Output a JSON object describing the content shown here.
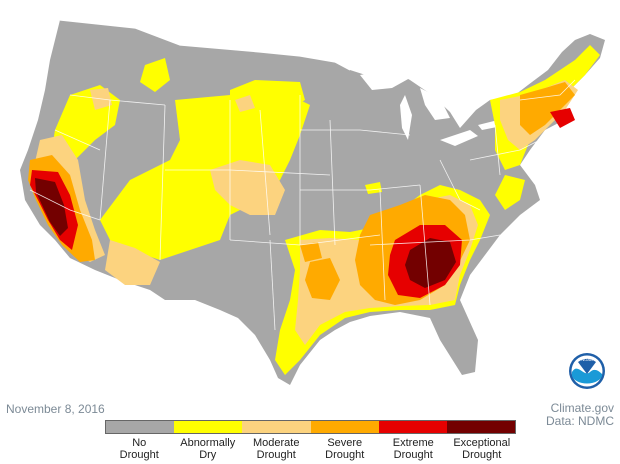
{
  "date": "November 8, 2016",
  "credit": {
    "line1": "Climate.gov",
    "line2": "Data: NDMC"
  },
  "logo": {
    "text": "NOAA"
  },
  "legend": {
    "items": [
      {
        "label": "No Drought",
        "color": "#a7a7a7"
      },
      {
        "label": "Abnormally Dry",
        "color": "#ffff00"
      },
      {
        "label": "Moderate Drought",
        "color": "#fcd37f"
      },
      {
        "label": "Severe Drought",
        "color": "#ffaa00"
      },
      {
        "label": "Extreme Drought",
        "color": "#e60000"
      },
      {
        "label": "Exceptional Drought",
        "color": "#730000"
      }
    ]
  },
  "colors": {
    "none": "#a7a7a7",
    "abnormal": "#ffff00",
    "moderate": "#fcd37f",
    "severe": "#ffaa00",
    "extreme": "#e60000",
    "exceptional": "#730000",
    "water": "#ffffff",
    "borders": "#ffffff"
  }
}
